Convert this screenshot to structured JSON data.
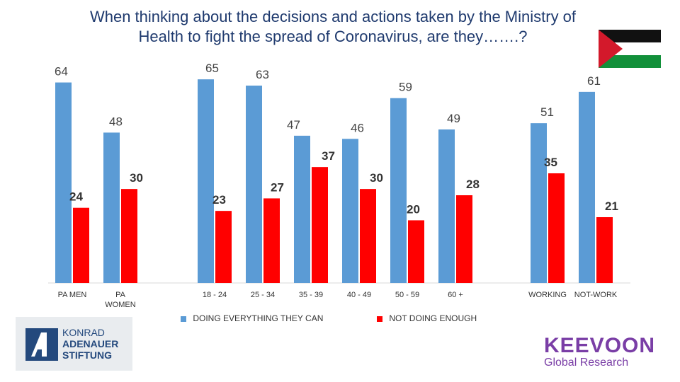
{
  "page": {
    "title_line1": "When thinking about the decisions and actions taken by the Ministry of",
    "title_line2": "Health to fight the spread of Coronavirus, are they…….?"
  },
  "logos": {
    "kas": {
      "line1": "KONRAD",
      "line2": "ADENAUER",
      "line3": "STIFTUNG"
    },
    "keevoon": {
      "name": "KEEVOON",
      "subtitle": "Global Research"
    },
    "flag": "palestine-flag"
  },
  "colors": {
    "series1": "#5b9bd5",
    "series2": "#ff0000",
    "title": "#1f3a6e"
  },
  "chart_data": {
    "type": "bar",
    "title": "When thinking about the decisions and actions taken by the Ministry of Health to fight the spread of Coronavirus, are they…….?",
    "groups": [
      {
        "categories": [
          "PA MEN",
          "PA WOMEN"
        ]
      },
      {
        "categories": [
          "18 - 24",
          "25 - 34",
          "35 - 39",
          "40 - 49",
          "50 - 59",
          "60 +"
        ]
      },
      {
        "categories": [
          "WORKING",
          "NOT-WORK"
        ]
      }
    ],
    "categories": [
      "PA MEN",
      "PA WOMEN",
      "18 - 24",
      "25 - 34",
      "35 - 39",
      "40 - 49",
      "50 - 59",
      "60 +",
      "WORKING",
      "NOT-WORK"
    ],
    "series": [
      {
        "name": "DOING EVERYTHING THEY CAN",
        "color": "#5b9bd5",
        "values": [
          64,
          48,
          65,
          63,
          47,
          46,
          59,
          49,
          51,
          61
        ]
      },
      {
        "name": "NOT DOING ENOUGH",
        "color": "#ff0000",
        "values": [
          24,
          30,
          23,
          27,
          37,
          30,
          20,
          28,
          35,
          21
        ]
      }
    ],
    "ylim": [
      0,
      70
    ],
    "grid": false,
    "legend": "bottom"
  }
}
